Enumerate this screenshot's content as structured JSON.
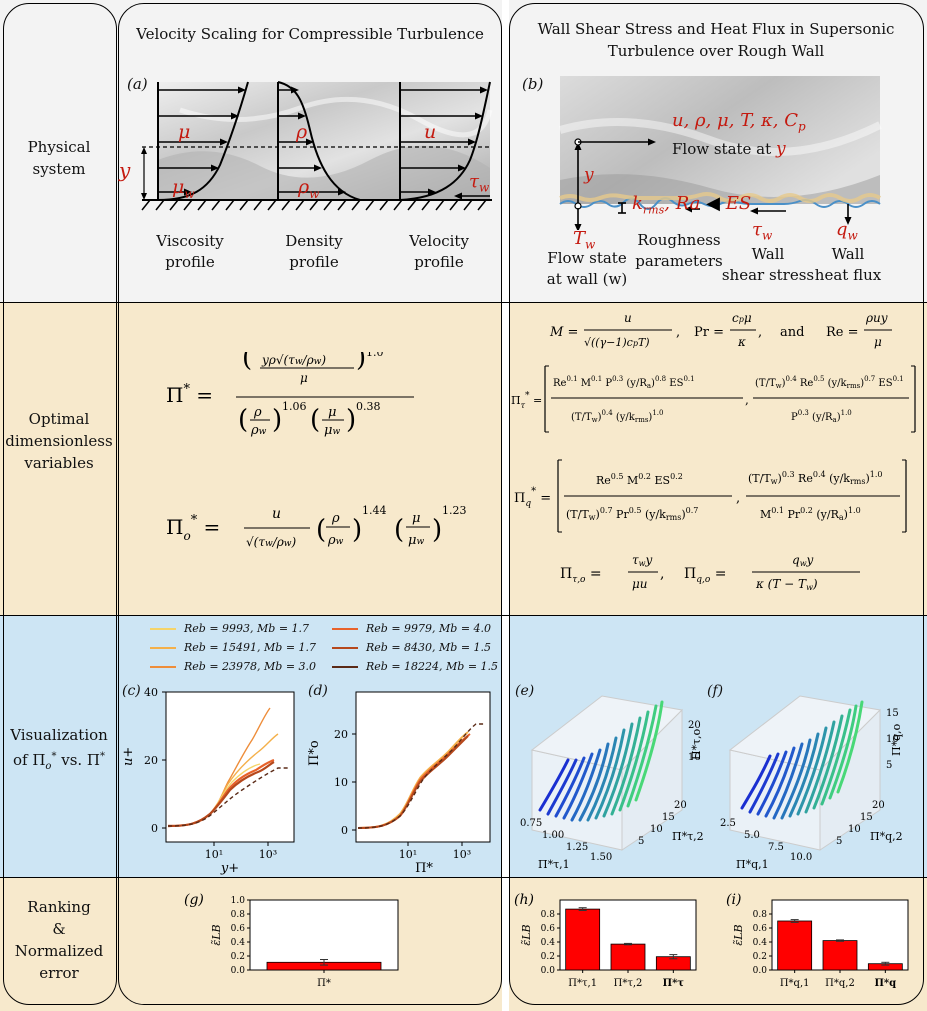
{
  "columns": {
    "left_title": "Velocity Scaling for Compressible Turbulence",
    "right_title_1": "Wall Shear Stress and Heat Flux in Supersonic",
    "right_title_2": "Turbulence over Rough Wall"
  },
  "rows": {
    "physical_1": "Physical",
    "physical_2": "system",
    "optimal_1": "Optimal",
    "optimal_2": "dimensionless",
    "optimal_3": "variables",
    "vis_1": "Visualization",
    "vis_2": "of Π*o vs. Π*",
    "rank_1": "Ranking",
    "rank_2": "&",
    "rank_3": "Normalized",
    "rank_4": "error"
  },
  "panel_a": {
    "tag": "(a)",
    "mu": "μ",
    "rho": "ρ",
    "u": "u",
    "mu_w": "μw",
    "rho_w": "ρw",
    "tau_w": "τw",
    "y": "y",
    "labels": [
      "Viscosity",
      "profile",
      "Density",
      "profile",
      "Velocity",
      "profile"
    ]
  },
  "panel_b": {
    "tag": "(b)",
    "vars": "u, ρ, μ, T, κ, Cp",
    "flow_state": "Flow state at",
    "flow_y": "y",
    "y": "y",
    "roughness": "krms, Ra, ES",
    "T_w": "Tw",
    "tau_w": "τw",
    "q_w": "qw",
    "label_flow": [
      "Flow state",
      "at wall (w)"
    ],
    "label_rough": [
      "Roughness",
      "parameters"
    ],
    "label_shear": [
      "Wall",
      "shear stress"
    ],
    "label_heat": [
      "Wall",
      "heat flux"
    ]
  },
  "equations": {
    "pi_star": "Π* =",
    "pi_o": "Π*o =",
    "defs": "M = u / √((γ−1)cpT),   Pr = cpμ/κ,   and   Re = ρuy/μ",
    "pi_tau": "Π*τ =",
    "pi_q": "Π*q =",
    "outputs": "Πτ,o = τw y/(μu),   Πq,o = qw y/(κ(T − Tw))"
  },
  "legend": [
    {
      "label": "Reb = 9993,  Mb = 1.7",
      "color": "#f5d469"
    },
    {
      "label": "Reb = 9979,  Mb = 4.0",
      "color": "#e8622a"
    },
    {
      "label": "Reb = 15491,  Mb = 1.7",
      "color": "#f4b04a"
    },
    {
      "label": "Reb = 8430,  Mb = 1.5",
      "color": "#b5481c"
    },
    {
      "label": "Reb = 23978,  Mb = 3.0",
      "color": "#ee8d3a"
    },
    {
      "label": "Reb = 18224,  Mb = 1.5",
      "color": "#5a2a16"
    }
  ],
  "panel_c": {
    "tag": "(c)",
    "ylabel": "u+",
    "xlabel": "y+",
    "yticks": [
      "0",
      "20",
      "40"
    ],
    "xticks": [
      "10¹",
      "10³"
    ]
  },
  "panel_d": {
    "tag": "(d)",
    "ylabel": "Π*o",
    "xlabel": "Π*",
    "yticks": [
      "0",
      "10",
      "20"
    ],
    "xticks": [
      "10¹",
      "10³"
    ]
  },
  "panel_e": {
    "tag": "(e)",
    "zlabel": "Π*τ,o",
    "x1label": "Π*τ,1",
    "x2label": "Π*τ,2",
    "x1ticks": [
      "0.75",
      "1.00",
      "1.25",
      "1.50"
    ],
    "x2ticks": [
      "5",
      "10",
      "15",
      "20"
    ],
    "zticks": [
      "10",
      "20"
    ]
  },
  "panel_f": {
    "tag": "(f)",
    "zlabel": "Π*q,o",
    "x1label": "Π*q,1",
    "x2label": "Π*q,2",
    "x1ticks": [
      "2.5",
      "5.0",
      "7.5",
      "10.0"
    ],
    "x2ticks": [
      "5",
      "10",
      "15",
      "20"
    ],
    "zticks": [
      "5",
      "10",
      "15"
    ]
  },
  "chart_data": [
    {
      "type": "bar",
      "tag": "(g)",
      "categories": [
        "Π*"
      ],
      "values": [
        0.11
      ],
      "errors": [
        0.04
      ],
      "ylabel": "ε̃LB",
      "ylim": [
        0,
        1.0
      ],
      "yticks": [
        "0.0",
        "0.2",
        "0.4",
        "0.6",
        "0.8",
        "1.0"
      ]
    },
    {
      "type": "bar",
      "tag": "(h)",
      "categories": [
        "Π*τ,1",
        "Π*τ,2",
        "Π*τ"
      ],
      "values": [
        0.87,
        0.37,
        0.19
      ],
      "errors": [
        0.02,
        0.01,
        0.03
      ],
      "ylabel": "ε̃LB",
      "ylim": [
        0,
        1.0
      ],
      "yticks": [
        "0.0",
        "0.2",
        "0.4",
        "0.6",
        "0.8"
      ]
    },
    {
      "type": "bar",
      "tag": "(i)",
      "categories": [
        "Π*q,1",
        "Π*q,2",
        "Π*q"
      ],
      "values": [
        0.7,
        0.42,
        0.09
      ],
      "errors": [
        0.02,
        0.01,
        0.02
      ],
      "ylabel": "ε̃LB",
      "ylim": [
        0,
        1.0
      ],
      "yticks": [
        "0.0",
        "0.2",
        "0.4",
        "0.6",
        "0.8"
      ]
    }
  ],
  "colors": {
    "physical_bg": "#f3f3f3",
    "optimal_bg": "#f7e9cc",
    "vis_bg": "#cde5f4",
    "bar": "#ff0000"
  }
}
